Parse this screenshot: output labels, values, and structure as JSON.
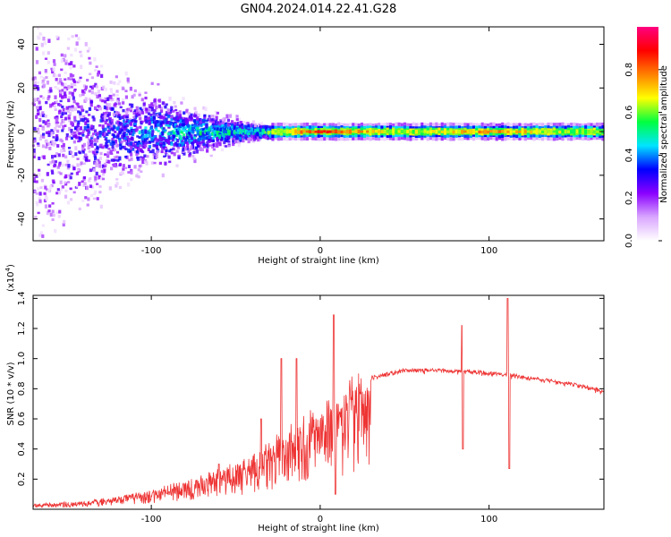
{
  "title": "GN04.2024.014.22.41.G28",
  "chart_data": [
    {
      "type": "heatmap",
      "xlabel": "Height of straight line (km)",
      "ylabel": "Frequency (Hz)",
      "xlim": [
        -170,
        168
      ],
      "ylim": [
        -50,
        48
      ],
      "xticks": [
        -100,
        0,
        100
      ],
      "xtick_labels": [
        "-100",
        "0",
        "100"
      ],
      "yticks": [
        -40,
        -20,
        0,
        20,
        40
      ],
      "ytick_labels": [
        "-40",
        "-20",
        "0",
        "20",
        "40"
      ],
      "colorbar": {
        "label": "Normalized spectral amplitude",
        "range": [
          0,
          1
        ],
        "ticks": [
          0.0,
          0.2,
          0.4,
          0.6,
          0.8
        ],
        "tick_labels": [
          "0.0",
          "0.2",
          "0.4",
          "0.6",
          "0.8"
        ],
        "colors": [
          "#ffffff",
          "#d9a6ff",
          "#8a00ff",
          "#0000ff",
          "#00e5ff",
          "#00ff40",
          "#ffff00",
          "#ff8000",
          "#ff0000",
          "#ff0080"
        ]
      },
      "description_points": [
        {
          "x": -160,
          "spread": 45,
          "intensity": 0.2
        },
        {
          "x": -120,
          "spread": 20,
          "intensity": 0.3
        },
        {
          "x": -80,
          "spread": 10,
          "intensity": 0.45
        },
        {
          "x": -40,
          "spread": 3,
          "intensity": 0.5
        },
        {
          "x": 0,
          "spread": 1.5,
          "intensity": 0.85
        },
        {
          "x": 50,
          "spread": 1.5,
          "intensity": 0.6
        },
        {
          "x": 100,
          "spread": 1.5,
          "intensity": 0.75
        },
        {
          "x": 165,
          "spread": 1.5,
          "intensity": 0.55
        }
      ],
      "grid": false
    },
    {
      "type": "line",
      "xlabel": "Height of straight line (km)",
      "ylabel": "SNR (10 * v/v)",
      "scale_label": "(x10",
      "scale_exp": "4",
      "scale_close": ")",
      "xlim": [
        -170,
        168
      ],
      "ylim": [
        0,
        1.42
      ],
      "xticks": [
        -100,
        0,
        100
      ],
      "xtick_labels": [
        "-100",
        "0",
        "100"
      ],
      "yticks": [
        0.2,
        0.4,
        0.6,
        0.8,
        1.0,
        1.2,
        1.4
      ],
      "ytick_labels": [
        "0.2",
        "0.4",
        "0.6",
        "0.8",
        "1.0",
        "1.2",
        "1.4"
      ],
      "color": "#ee3333",
      "envelope": {
        "x": [
          -170,
          -140,
          -120,
          -100,
          -80,
          -60,
          -40,
          -20,
          -10,
          0,
          10,
          20,
          30,
          50,
          70,
          90,
          110,
          130,
          150,
          168
        ],
        "y": [
          0.03,
          0.05,
          0.08,
          0.12,
          0.18,
          0.25,
          0.35,
          0.5,
          0.58,
          0.65,
          0.73,
          0.82,
          0.88,
          0.93,
          0.93,
          0.92,
          0.9,
          0.87,
          0.84,
          0.79
        ]
      },
      "spikes": [
        {
          "x": -60,
          "y": 0.3
        },
        {
          "x": -35,
          "y": 0.6
        },
        {
          "x": -23,
          "y": 1.0
        },
        {
          "x": -14,
          "y": 1.0
        },
        {
          "x": 8,
          "y": 1.29
        },
        {
          "x": 9,
          "y": 0.1
        },
        {
          "x": 84,
          "y": 1.22
        },
        {
          "x": 84.5,
          "y": 0.4
        },
        {
          "x": 111,
          "y": 1.4
        },
        {
          "x": 112,
          "y": 0.27
        }
      ],
      "grid": false
    }
  ]
}
